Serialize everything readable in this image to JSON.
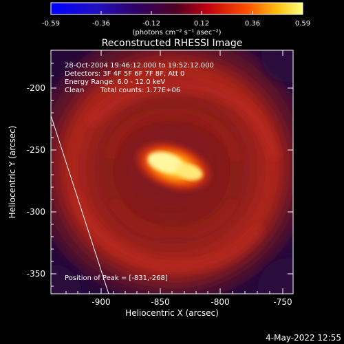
{
  "colorbar": {
    "ticks": [
      "-0.59",
      "-0.36",
      "-0.12",
      "0.12",
      "0.36",
      "0.59"
    ],
    "unit_label": "(photons cm⁻² s⁻¹ asec⁻²)"
  },
  "title": "Reconstructed RHESSI Image",
  "info": {
    "time_range": "28-Oct-2004 19:46:12.000 to 19:52:12.000",
    "detectors": "Detectors: 3F 4F 5F 6F 7F 8F, Att 0",
    "energy": "Energy Range: 6.0 - 12.0 keV",
    "clean": "Clean",
    "counts": "Total counts: 1.77E+06"
  },
  "peak": "Position of Peak = [-831,-268]",
  "x_axis": {
    "label": "Heliocentric X (arcsec)",
    "ticks": [
      "-900",
      "-850",
      "-800",
      "-750"
    ],
    "range": [
      -940,
      -750
    ]
  },
  "y_axis": {
    "label": "Heliocentric Y (arcsec)",
    "ticks": [
      "-200",
      "-250",
      "-300",
      "-350"
    ],
    "range": [
      -368,
      -178
    ]
  },
  "timestamp": "4-May-2022 12:55",
  "colors": {
    "background": "#000000",
    "map_dark": "#2a0a3e",
    "map_red": "#b3231b",
    "map_peak": "#fff8a0"
  }
}
